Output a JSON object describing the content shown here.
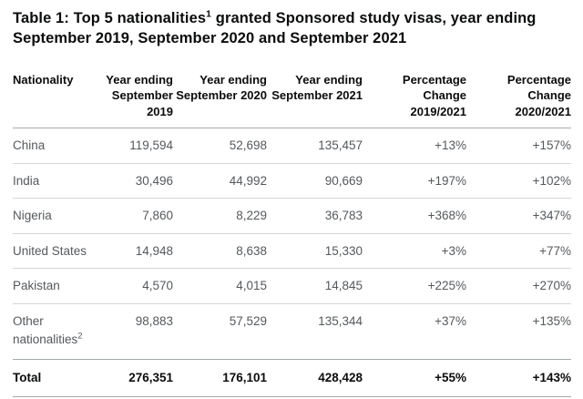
{
  "colors": {
    "text_primary": "#0b0c0c",
    "text_secondary": "#55595c",
    "border_strong": "#a6aaad",
    "border_light": "#d3d5d6",
    "page_bg": "#ffffff"
  },
  "title": {
    "part1": "Table 1: Top 5 nationalities",
    "sup": "1",
    "part2": " granted Sponsored study visas, year ending September 2019, September 2020 and September 2021"
  },
  "table": {
    "headers": [
      {
        "lines": [
          "Nationality"
        ]
      },
      {
        "lines": [
          "Year ending",
          "September 2019"
        ]
      },
      {
        "lines": [
          "Year ending",
          "September 2020"
        ]
      },
      {
        "lines": [
          "Year ending",
          "September 2021"
        ]
      },
      {
        "lines": [
          "Percentage",
          "Change",
          "2019/2021"
        ]
      },
      {
        "lines": [
          "Percentage",
          "Change",
          "2020/2021"
        ]
      }
    ],
    "rows": [
      {
        "nationality": "China",
        "sup": "",
        "values": [
          "119,594",
          "52,698",
          "135,457",
          "+13%",
          "+157%"
        ]
      },
      {
        "nationality": "India",
        "sup": "",
        "values": [
          "30,496",
          "44,992",
          "90,669",
          "+197%",
          "+102%"
        ]
      },
      {
        "nationality": "Nigeria",
        "sup": "",
        "values": [
          "7,860",
          "8,229",
          "36,783",
          "+368%",
          "+347%"
        ]
      },
      {
        "nationality": "United States",
        "sup": "",
        "values": [
          "14,948",
          "8,638",
          "15,330",
          "+3%",
          "+77%"
        ]
      },
      {
        "nationality": "Pakistan",
        "sup": "",
        "values": [
          "4,570",
          "4,015",
          "14,845",
          "+225%",
          "+270%"
        ]
      },
      {
        "nationality": "Other nationalities",
        "sup": "2",
        "values": [
          "98,883",
          "57,529",
          "135,344",
          "+37%",
          "+135%"
        ]
      }
    ],
    "total": {
      "label": "Total",
      "values": [
        "276,351",
        "176,101",
        "428,428",
        "+55%",
        "+143%"
      ]
    }
  }
}
